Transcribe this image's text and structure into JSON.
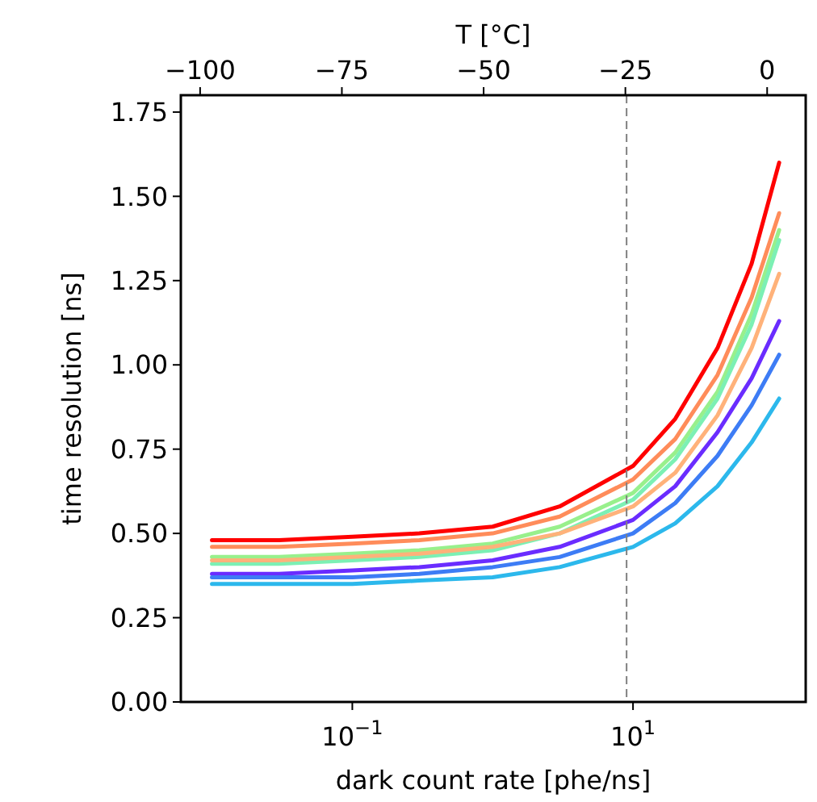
{
  "chart_data": {
    "type": "line",
    "xlabel": "dark count rate [phe/ns]",
    "ylabel": "time resolution [ns]",
    "x2label": "T [°C]",
    "log": "x",
    "x": [
      0.01,
      0.03,
      0.1,
      0.3,
      1,
      3,
      10,
      20,
      40,
      70,
      110
    ],
    "xlim": [
      0.006,
      170
    ],
    "xticks": [
      {
        "value": 0.1,
        "label": "10$^{−1}$"
      },
      {
        "value": 10,
        "label": "10$^{1}$"
      }
    ],
    "x2lim": [
      -103.4,
      6.8
    ],
    "x2ticks": [
      {
        "value": -100,
        "label": "−100"
      },
      {
        "value": -75,
        "label": "−75"
      },
      {
        "value": -50,
        "label": "−50"
      },
      {
        "value": -25,
        "label": "−25"
      },
      0
    ],
    "ylim": [
      0,
      1.8
    ],
    "yticks": [
      {
        "value": 0,
        "label": "0.00"
      },
      {
        "value": 0.25,
        "label": "0.25"
      },
      {
        "value": 0.5,
        "label": "0.50"
      },
      {
        "value": 0.75,
        "label": "0.75"
      },
      {
        "value": 1,
        "label": "1.00"
      },
      {
        "value": 1.25,
        "label": "1.25"
      },
      {
        "value": 1.5,
        "label": "1.50"
      },
      {
        "value": 1.75,
        "label": "1.75"
      }
    ],
    "grid": false,
    "marker": "none",
    "line_style": "solid",
    "ref_lines": [
      {
        "axis": "x",
        "value": 9,
        "color": "#808080",
        "line_style": "dashed"
      }
    ],
    "series": [
      {
        "color": "#ff0000",
        "values": [
          0.48,
          0.48,
          0.49,
          0.5,
          0.52,
          0.58,
          0.7,
          0.84,
          1.05,
          1.3,
          1.6
        ]
      },
      {
        "color": "#ff8c5a",
        "values": [
          0.46,
          0.46,
          0.47,
          0.48,
          0.5,
          0.55,
          0.66,
          0.78,
          0.97,
          1.2,
          1.45
        ]
      },
      {
        "color": "#98f08c",
        "values": [
          0.43,
          0.43,
          0.44,
          0.45,
          0.47,
          0.52,
          0.62,
          0.74,
          0.92,
          1.15,
          1.4
        ]
      },
      {
        "color": "#7cf0b4",
        "values": [
          0.41,
          0.41,
          0.42,
          0.43,
          0.45,
          0.5,
          0.6,
          0.72,
          0.9,
          1.12,
          1.37
        ]
      },
      {
        "color": "#ffb27a",
        "values": [
          0.42,
          0.42,
          0.43,
          0.44,
          0.46,
          0.5,
          0.58,
          0.68,
          0.85,
          1.05,
          1.27
        ]
      },
      {
        "color": "#6a2cff",
        "values": [
          0.38,
          0.38,
          0.39,
          0.4,
          0.42,
          0.46,
          0.54,
          0.64,
          0.8,
          0.96,
          1.13
        ]
      },
      {
        "color": "#3d7cf5",
        "values": [
          0.37,
          0.37,
          0.37,
          0.38,
          0.4,
          0.43,
          0.5,
          0.59,
          0.73,
          0.88,
          1.03
        ]
      },
      {
        "color": "#2cb8ec",
        "values": [
          0.35,
          0.35,
          0.35,
          0.36,
          0.37,
          0.4,
          0.46,
          0.53,
          0.64,
          0.77,
          0.9
        ]
      }
    ]
  }
}
